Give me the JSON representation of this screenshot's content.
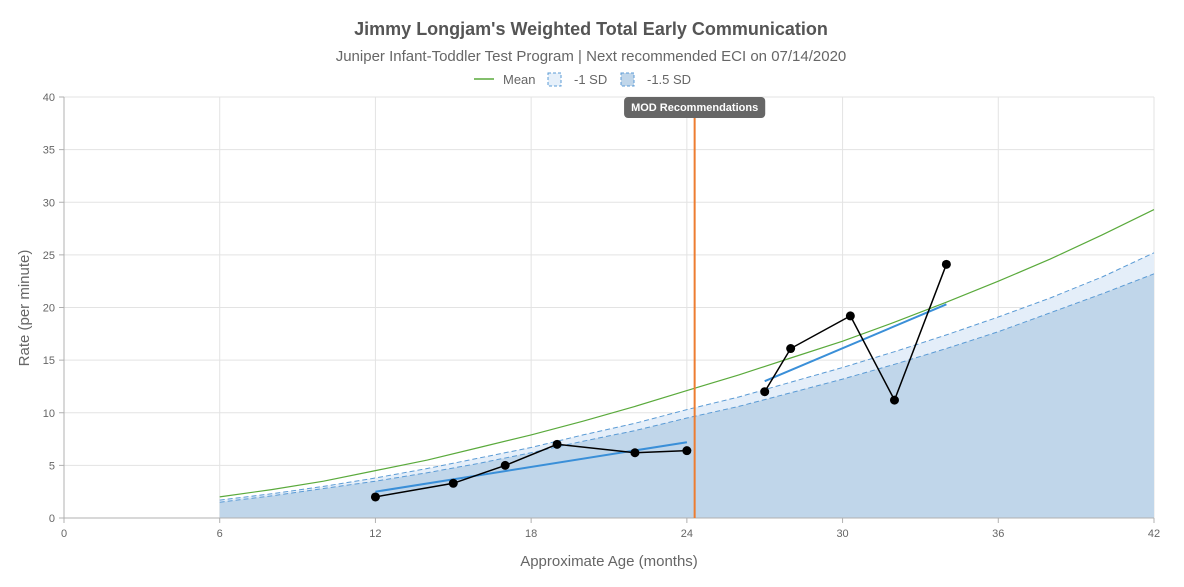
{
  "chart_data": {
    "type": "line",
    "title": "Jimmy Longjam's Weighted Total Early Communication",
    "subtitle": "Juniper Infant-Toddler Test Program | Next recommended ECI on 07/14/2020",
    "xlabel": "Approximate Age (months)",
    "ylabel": "Rate (per minute)",
    "xlim": [
      0,
      42
    ],
    "ylim": [
      0,
      40
    ],
    "x_ticks": [
      0,
      6,
      12,
      18,
      24,
      30,
      36,
      42
    ],
    "y_ticks": [
      0,
      5,
      10,
      15,
      20,
      25,
      30,
      35,
      40
    ],
    "legend": [
      {
        "name": "Mean",
        "color": "#5aaa3c",
        "style": "line"
      },
      {
        "name": "-1 SD",
        "color": "#5b9bd5",
        "style": "dashed-box"
      },
      {
        "name": "-1.5 SD",
        "color": "#5b9bd5",
        "style": "filled-box"
      }
    ],
    "mean_curve": {
      "name": "Mean",
      "color": "#5aaa3c",
      "x": [
        6,
        8,
        10,
        12,
        14,
        16,
        18,
        20,
        22,
        24,
        26,
        28,
        30,
        32,
        34,
        36,
        38,
        40,
        42
      ],
      "y": [
        2.0,
        2.7,
        3.5,
        4.5,
        5.5,
        6.7,
        7.9,
        9.2,
        10.6,
        12.1,
        13.6,
        15.2,
        16.8,
        18.6,
        20.5,
        22.5,
        24.6,
        26.9,
        29.3
      ]
    },
    "sd1_curve": {
      "name": "-1 SD",
      "color": "#5b9bd5",
      "x": [
        6,
        8,
        10,
        12,
        14,
        16,
        18,
        20,
        22,
        24,
        26,
        28,
        30,
        32,
        34,
        36,
        38,
        40,
        42
      ],
      "y": [
        1.7,
        2.3,
        3.0,
        3.8,
        4.7,
        5.7,
        6.7,
        7.9,
        9.0,
        10.3,
        11.5,
        12.9,
        14.3,
        15.8,
        17.4,
        19.1,
        20.9,
        22.9,
        25.2
      ]
    },
    "sd15_curve": {
      "name": "-1.5 SD",
      "color": "#5b9bd5",
      "fill": "#c0d6ea",
      "x": [
        6,
        8,
        10,
        12,
        14,
        16,
        18,
        20,
        22,
        24,
        26,
        28,
        30,
        32,
        34,
        36,
        38,
        40,
        42
      ],
      "y": [
        1.5,
        2.1,
        2.8,
        3.5,
        4.3,
        5.2,
        6.2,
        7.3,
        8.3,
        9.5,
        10.6,
        11.9,
        13.2,
        14.6,
        16.1,
        17.7,
        19.5,
        21.3,
        23.2
      ]
    },
    "observations": [
      {
        "x": [
          12,
          15,
          17,
          19,
          22,
          24
        ],
        "y": [
          2.0,
          3.3,
          5.0,
          7.0,
          6.2,
          6.4
        ]
      },
      {
        "x": [
          27,
          28,
          30.3,
          32,
          34
        ],
        "y": [
          12.0,
          16.1,
          19.2,
          11.2,
          24.1
        ]
      }
    ],
    "trend_lines": [
      {
        "x": [
          12,
          24
        ],
        "y": [
          2.5,
          7.2
        ],
        "color": "#3a8fd8"
      },
      {
        "x": [
          27,
          34
        ],
        "y": [
          13.0,
          20.3
        ],
        "color": "#3a8fd8"
      }
    ],
    "vertical_marker": {
      "x": 24.3,
      "label": "MOD Recommendations",
      "color": "#ed7d31"
    }
  }
}
